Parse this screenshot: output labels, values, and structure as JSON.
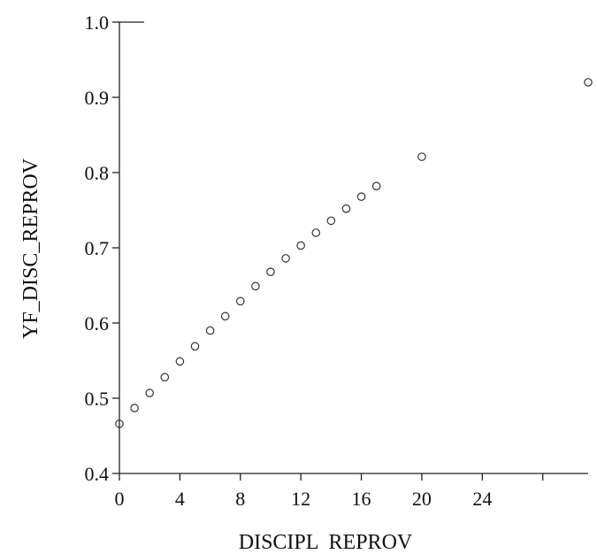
{
  "chart_data": {
    "type": "scatter",
    "title": "",
    "xlabel": "DISCIPL  REPROV",
    "ylabel": "YF_DISC_REPROV",
    "xlim": [
      0,
      31
    ],
    "ylim": [
      0.4,
      1.0
    ],
    "xticks": [
      0,
      4,
      8,
      12,
      16,
      20,
      24
    ],
    "xtick_labels": [
      "0",
      "4",
      "8",
      "12",
      "16",
      "20",
      "24"
    ],
    "xticks_unlabeled": [
      28
    ],
    "yticks": [
      0.4,
      0.5,
      0.6,
      0.7,
      0.8,
      0.9,
      1.0
    ],
    "ytick_labels": [
      "0.4",
      "0.5",
      "0.6",
      "0.7",
      "0.8",
      "0.9",
      "1.0"
    ],
    "grid": false,
    "marker": "open-circle",
    "colors": {
      "marker": "#333333",
      "axis": "#222222",
      "text": "#111111"
    },
    "x": [
      0,
      1,
      2,
      3,
      4,
      5,
      6,
      7,
      8,
      9,
      10,
      11,
      12,
      13,
      14,
      15,
      16,
      17,
      20,
      31
    ],
    "y": [
      0.466,
      0.487,
      0.507,
      0.528,
      0.549,
      0.569,
      0.59,
      0.609,
      0.629,
      0.649,
      0.668,
      0.686,
      0.703,
      0.72,
      0.736,
      0.752,
      0.768,
      0.782,
      0.821,
      0.92
    ]
  }
}
